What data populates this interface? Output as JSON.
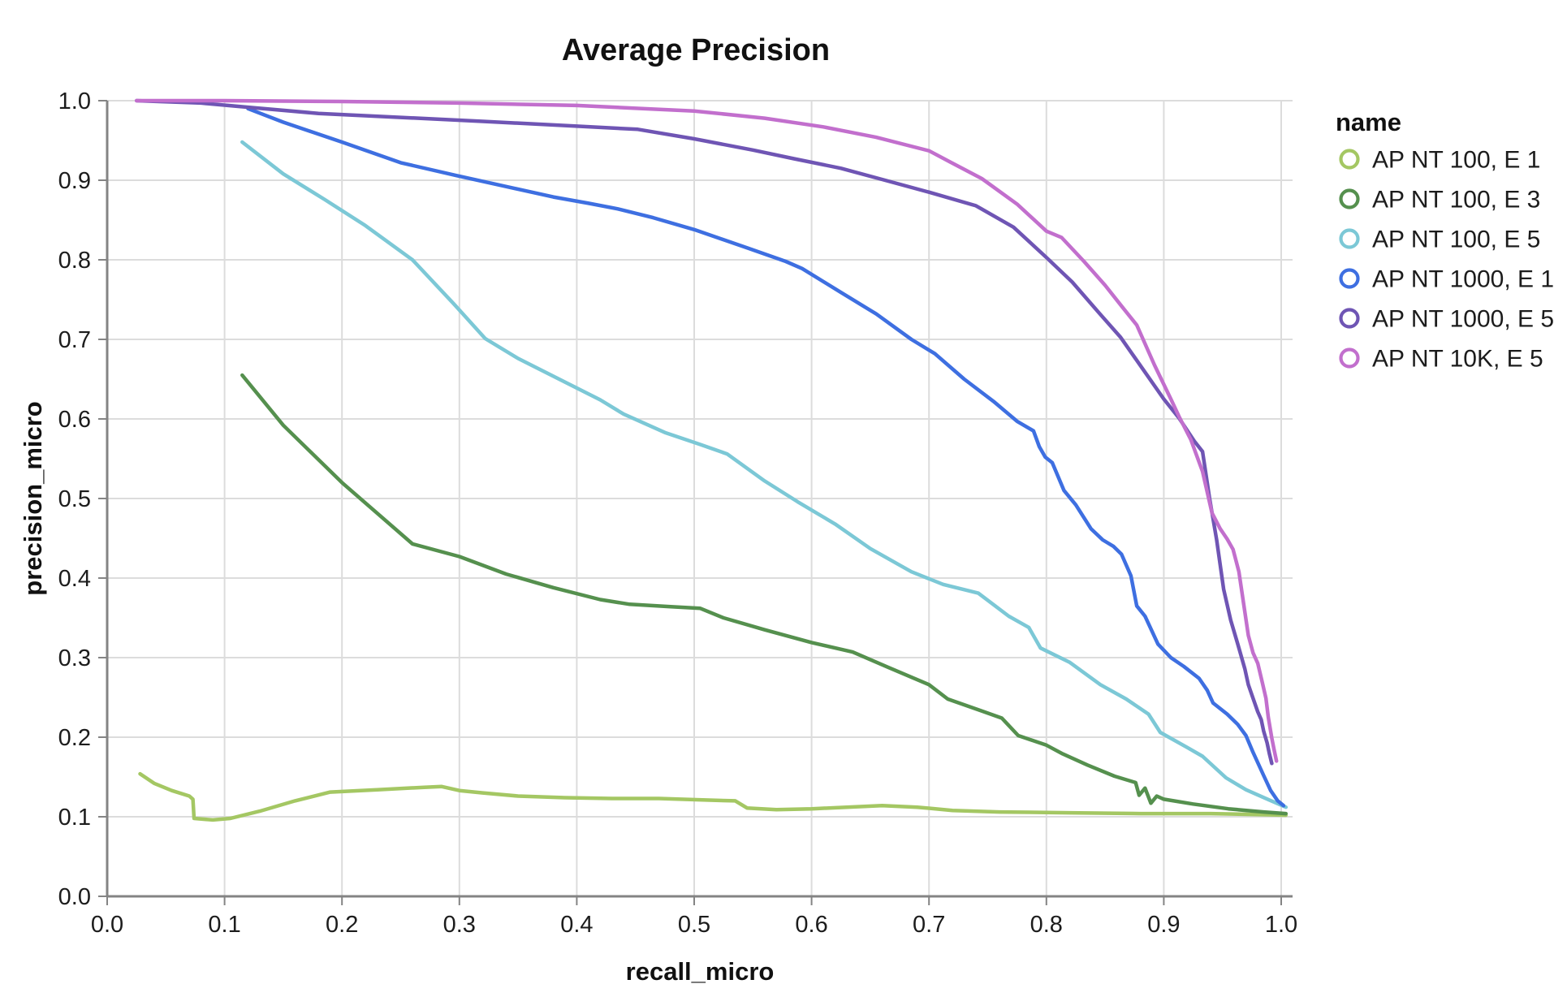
{
  "title": "Average Precision",
  "axes": {
    "x": {
      "title": "recall_micro",
      "ticks": [
        0.0,
        0.1,
        0.2,
        0.3,
        0.4,
        0.5,
        0.6,
        0.7,
        0.8,
        0.9,
        1.0
      ]
    },
    "y": {
      "title": "precision_micro",
      "ticks": [
        0.0,
        0.1,
        0.2,
        0.3,
        0.4,
        0.5,
        0.6,
        0.7,
        0.8,
        0.9,
        1.0
      ]
    }
  },
  "legend": {
    "title": "name"
  },
  "colors": {
    "grid": "#dcdcdc",
    "axis": "#848484",
    "tick": "#848484",
    "text": "#1c1c1c",
    "background": "#ffffff"
  },
  "chart_data": {
    "type": "line",
    "title": "Average Precision",
    "xlabel": "recall_micro",
    "ylabel": "precision_micro",
    "xlim": [
      0.0,
      1.0
    ],
    "ylim": [
      0.0,
      1.0
    ],
    "grid": true,
    "legend_position": "right",
    "series": [
      {
        "name": "AP NT 100, E 1",
        "color": "#a4c763",
        "points": [
          [
            0.028,
            0.154
          ],
          [
            0.04,
            0.142
          ],
          [
            0.055,
            0.133
          ],
          [
            0.07,
            0.126
          ],
          [
            0.073,
            0.122
          ],
          [
            0.074,
            0.098
          ],
          [
            0.09,
            0.096
          ],
          [
            0.105,
            0.098
          ],
          [
            0.13,
            0.107
          ],
          [
            0.16,
            0.12
          ],
          [
            0.19,
            0.131
          ],
          [
            0.23,
            0.134
          ],
          [
            0.27,
            0.137
          ],
          [
            0.285,
            0.138
          ],
          [
            0.3,
            0.133
          ],
          [
            0.32,
            0.13
          ],
          [
            0.35,
            0.126
          ],
          [
            0.39,
            0.124
          ],
          [
            0.43,
            0.123
          ],
          [
            0.47,
            0.123
          ],
          [
            0.51,
            0.121
          ],
          [
            0.535,
            0.12
          ],
          [
            0.545,
            0.111
          ],
          [
            0.57,
            0.109
          ],
          [
            0.6,
            0.11
          ],
          [
            0.63,
            0.112
          ],
          [
            0.66,
            0.114
          ],
          [
            0.69,
            0.112
          ],
          [
            0.72,
            0.108
          ],
          [
            0.76,
            0.106
          ],
          [
            0.82,
            0.105
          ],
          [
            0.88,
            0.104
          ],
          [
            0.94,
            0.104
          ],
          [
            1.004,
            0.102
          ]
        ]
      },
      {
        "name": "AP NT 100, E 3",
        "color": "#55904e",
        "points": [
          [
            0.115,
            0.655
          ],
          [
            0.15,
            0.592
          ],
          [
            0.2,
            0.52
          ],
          [
            0.26,
            0.443
          ],
          [
            0.3,
            0.427
          ],
          [
            0.34,
            0.405
          ],
          [
            0.38,
            0.388
          ],
          [
            0.42,
            0.373
          ],
          [
            0.445,
            0.367
          ],
          [
            0.48,
            0.364
          ],
          [
            0.505,
            0.362
          ],
          [
            0.525,
            0.35
          ],
          [
            0.56,
            0.335
          ],
          [
            0.6,
            0.319
          ],
          [
            0.635,
            0.307
          ],
          [
            0.665,
            0.288
          ],
          [
            0.7,
            0.266
          ],
          [
            0.716,
            0.248
          ],
          [
            0.745,
            0.233
          ],
          [
            0.762,
            0.224
          ],
          [
            0.776,
            0.202
          ],
          [
            0.8,
            0.19
          ],
          [
            0.814,
            0.179
          ],
          [
            0.835,
            0.165
          ],
          [
            0.858,
            0.151
          ],
          [
            0.876,
            0.143
          ],
          [
            0.879,
            0.127
          ],
          [
            0.884,
            0.136
          ],
          [
            0.889,
            0.117
          ],
          [
            0.894,
            0.126
          ],
          [
            0.9,
            0.122
          ],
          [
            0.925,
            0.116
          ],
          [
            0.955,
            0.11
          ],
          [
            0.985,
            0.106
          ],
          [
            1.004,
            0.104
          ]
        ]
      },
      {
        "name": "AP NT 100, E 5",
        "color": "#7cc8d6",
        "points": [
          [
            0.115,
            0.948
          ],
          [
            0.15,
            0.908
          ],
          [
            0.185,
            0.876
          ],
          [
            0.22,
            0.843
          ],
          [
            0.26,
            0.8
          ],
          [
            0.295,
            0.745
          ],
          [
            0.322,
            0.701
          ],
          [
            0.35,
            0.676
          ],
          [
            0.385,
            0.65
          ],
          [
            0.42,
            0.624
          ],
          [
            0.44,
            0.606
          ],
          [
            0.475,
            0.583
          ],
          [
            0.505,
            0.568
          ],
          [
            0.528,
            0.556
          ],
          [
            0.56,
            0.522
          ],
          [
            0.588,
            0.496
          ],
          [
            0.62,
            0.468
          ],
          [
            0.65,
            0.437
          ],
          [
            0.685,
            0.408
          ],
          [
            0.712,
            0.392
          ],
          [
            0.742,
            0.381
          ],
          [
            0.768,
            0.352
          ],
          [
            0.785,
            0.338
          ],
          [
            0.795,
            0.312
          ],
          [
            0.82,
            0.294
          ],
          [
            0.846,
            0.266
          ],
          [
            0.868,
            0.248
          ],
          [
            0.887,
            0.229
          ],
          [
            0.897,
            0.206
          ],
          [
            0.92,
            0.187
          ],
          [
            0.933,
            0.176
          ],
          [
            0.953,
            0.149
          ],
          [
            0.97,
            0.134
          ],
          [
            0.99,
            0.121
          ],
          [
            1.004,
            0.112
          ]
        ]
      },
      {
        "name": "AP NT 1000, E 1",
        "color": "#3e6fe1",
        "points": [
          [
            0.12,
            0.99
          ],
          [
            0.15,
            0.973
          ],
          [
            0.2,
            0.948
          ],
          [
            0.25,
            0.922
          ],
          [
            0.297,
            0.906
          ],
          [
            0.34,
            0.892
          ],
          [
            0.38,
            0.879
          ],
          [
            0.41,
            0.871
          ],
          [
            0.435,
            0.864
          ],
          [
            0.465,
            0.853
          ],
          [
            0.5,
            0.838
          ],
          [
            0.545,
            0.815
          ],
          [
            0.578,
            0.798
          ],
          [
            0.592,
            0.789
          ],
          [
            0.625,
            0.759
          ],
          [
            0.655,
            0.732
          ],
          [
            0.685,
            0.7
          ],
          [
            0.705,
            0.682
          ],
          [
            0.73,
            0.65
          ],
          [
            0.755,
            0.622
          ],
          [
            0.775,
            0.597
          ],
          [
            0.789,
            0.585
          ],
          [
            0.794,
            0.565
          ],
          [
            0.799,
            0.552
          ],
          [
            0.805,
            0.545
          ],
          [
            0.815,
            0.51
          ],
          [
            0.825,
            0.492
          ],
          [
            0.838,
            0.462
          ],
          [
            0.848,
            0.448
          ],
          [
            0.857,
            0.44
          ],
          [
            0.864,
            0.43
          ],
          [
            0.872,
            0.403
          ],
          [
            0.877,
            0.365
          ],
          [
            0.884,
            0.352
          ],
          [
            0.895,
            0.317
          ],
          [
            0.906,
            0.3
          ],
          [
            0.917,
            0.289
          ],
          [
            0.93,
            0.274
          ],
          [
            0.937,
            0.259
          ],
          [
            0.942,
            0.243
          ],
          [
            0.954,
            0.229
          ],
          [
            0.963,
            0.216
          ],
          [
            0.97,
            0.202
          ],
          [
            0.976,
            0.181
          ],
          [
            0.985,
            0.152
          ],
          [
            0.991,
            0.133
          ],
          [
            0.997,
            0.12
          ],
          [
            1.002,
            0.114
          ]
        ]
      },
      {
        "name": "AP NT 1000, E 5",
        "color": "#6f55b4",
        "points": [
          [
            0.025,
            1.0
          ],
          [
            0.08,
            0.997
          ],
          [
            0.125,
            0.991
          ],
          [
            0.18,
            0.984
          ],
          [
            0.25,
            0.979
          ],
          [
            0.32,
            0.974
          ],
          [
            0.4,
            0.968
          ],
          [
            0.452,
            0.964
          ],
          [
            0.5,
            0.952
          ],
          [
            0.55,
            0.938
          ],
          [
            0.585,
            0.927
          ],
          [
            0.625,
            0.915
          ],
          [
            0.66,
            0.901
          ],
          [
            0.7,
            0.885
          ],
          [
            0.74,
            0.868
          ],
          [
            0.772,
            0.841
          ],
          [
            0.8,
            0.803
          ],
          [
            0.822,
            0.772
          ],
          [
            0.845,
            0.733
          ],
          [
            0.863,
            0.703
          ],
          [
            0.882,
            0.663
          ],
          [
            0.9,
            0.625
          ],
          [
            0.913,
            0.601
          ],
          [
            0.926,
            0.572
          ],
          [
            0.933,
            0.559
          ],
          [
            0.939,
            0.5
          ],
          [
            0.945,
            0.448
          ],
          [
            0.951,
            0.386
          ],
          [
            0.957,
            0.347
          ],
          [
            0.963,
            0.317
          ],
          [
            0.969,
            0.286
          ],
          [
            0.972,
            0.266
          ],
          [
            0.976,
            0.249
          ],
          [
            0.98,
            0.232
          ],
          [
            0.983,
            0.222
          ],
          [
            0.985,
            0.208
          ],
          [
            0.988,
            0.193
          ],
          [
            0.99,
            0.179
          ],
          [
            0.992,
            0.167
          ]
        ]
      },
      {
        "name": "AP NT 10K, E 5",
        "color": "#c26fcd",
        "points": [
          [
            0.025,
            1.0
          ],
          [
            0.1,
            1.0
          ],
          [
            0.2,
            0.999
          ],
          [
            0.3,
            0.997
          ],
          [
            0.4,
            0.994
          ],
          [
            0.5,
            0.987
          ],
          [
            0.56,
            0.978
          ],
          [
            0.61,
            0.967
          ],
          [
            0.655,
            0.954
          ],
          [
            0.7,
            0.937
          ],
          [
            0.718,
            0.923
          ],
          [
            0.745,
            0.902
          ],
          [
            0.775,
            0.87
          ],
          [
            0.8,
            0.836
          ],
          [
            0.813,
            0.828
          ],
          [
            0.832,
            0.798
          ],
          [
            0.85,
            0.768
          ],
          [
            0.865,
            0.74
          ],
          [
            0.877,
            0.718
          ],
          [
            0.892,
            0.668
          ],
          [
            0.906,
            0.625
          ],
          [
            0.913,
            0.603
          ],
          [
            0.923,
            0.574
          ],
          [
            0.933,
            0.534
          ],
          [
            0.941,
            0.482
          ],
          [
            0.948,
            0.462
          ],
          [
            0.954,
            0.449
          ],
          [
            0.959,
            0.436
          ],
          [
            0.964,
            0.408
          ],
          [
            0.968,
            0.368
          ],
          [
            0.972,
            0.328
          ],
          [
            0.976,
            0.306
          ],
          [
            0.98,
            0.293
          ],
          [
            0.984,
            0.268
          ],
          [
            0.987,
            0.249
          ],
          [
            0.989,
            0.225
          ],
          [
            0.992,
            0.199
          ],
          [
            0.994,
            0.184
          ],
          [
            0.996,
            0.17
          ]
        ]
      }
    ]
  }
}
